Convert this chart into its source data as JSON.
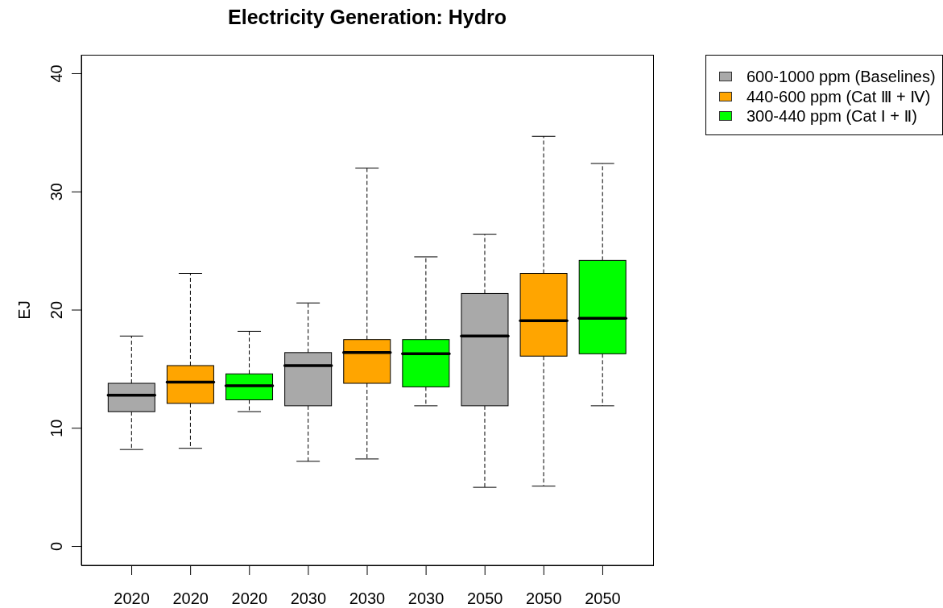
{
  "chart_data": {
    "type": "box",
    "title": "Electricity Generation: Hydro",
    "ylabel": "EJ",
    "categories": [
      "2020",
      "2020",
      "2020",
      "2030",
      "2030",
      "2030",
      "2050",
      "2050",
      "2050"
    ],
    "series": [
      {
        "name": "600-1000 ppm (Baselines)",
        "color": "#a9a9a9",
        "boxes": [
          {
            "low": 8.2,
            "q1": 11.4,
            "median": 12.8,
            "q3": 13.8,
            "high": 17.8
          },
          null,
          null,
          {
            "low": 7.2,
            "q1": 11.9,
            "median": 15.3,
            "q3": 16.4,
            "high": 20.6
          },
          null,
          null,
          {
            "low": 5.0,
            "q1": 11.9,
            "median": 17.8,
            "q3": 21.4,
            "high": 26.4
          },
          null,
          null
        ]
      },
      {
        "name": "440-600 ppm (Cat Ⅲ + Ⅳ)",
        "color": "#ffa500",
        "boxes": [
          null,
          {
            "low": 8.3,
            "q1": 12.1,
            "median": 13.9,
            "q3": 15.3,
            "high": 23.1
          },
          null,
          null,
          {
            "low": 7.4,
            "q1": 13.8,
            "median": 16.4,
            "q3": 17.5,
            "high": 32.0
          },
          null,
          null,
          {
            "low": 5.1,
            "q1": 16.1,
            "median": 19.1,
            "q3": 23.1,
            "high": 34.7
          },
          null
        ]
      },
      {
        "name": "300-440 ppm (Cat Ⅰ + Ⅱ)",
        "color": "#00ff00",
        "boxes": [
          null,
          null,
          {
            "low": 11.4,
            "q1": 12.4,
            "median": 13.6,
            "q3": 14.6,
            "high": 18.2
          },
          null,
          null,
          {
            "low": 11.9,
            "q1": 13.5,
            "median": 16.3,
            "q3": 17.5,
            "high": 24.5
          },
          null,
          null,
          {
            "low": 11.9,
            "q1": 16.3,
            "median": 19.3,
            "q3": 24.2,
            "high": 32.4
          }
        ]
      }
    ],
    "ylim": [
      -1.6,
      41.6
    ],
    "yticks": [
      0,
      10,
      20,
      30,
      40
    ],
    "legend": "top right"
  }
}
